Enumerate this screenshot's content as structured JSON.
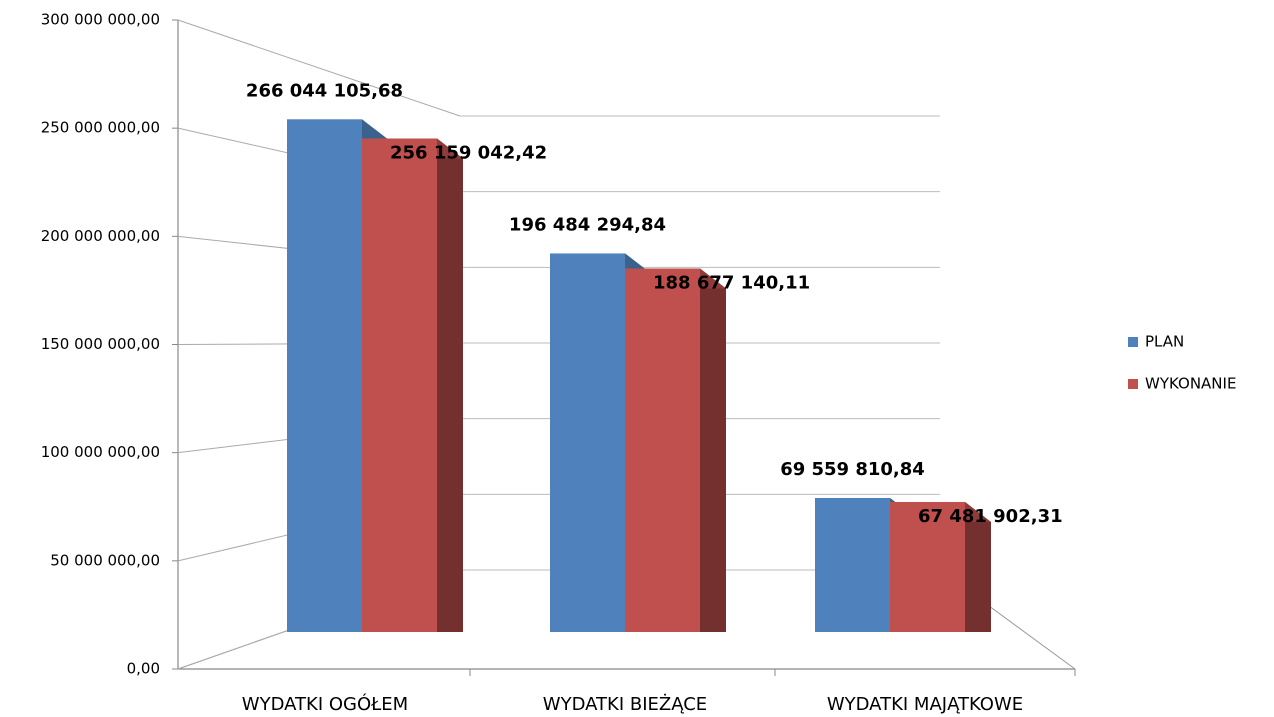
{
  "chart_data": {
    "type": "bar3d",
    "categories": [
      "WYDATKI OGÓŁEM",
      "WYDATKI BIEŻĄCE",
      "WYDATKI MAJĄTKOWE"
    ],
    "series": [
      {
        "name": "PLAN",
        "color": "#4f81bd",
        "values": [
          266044105.68,
          196484294.84,
          69559810.84
        ],
        "value_labels": [
          "266 044 105,68",
          "196 484 294,84",
          "69 559 810,84"
        ]
      },
      {
        "name": "WYKONANIE",
        "color": "#c0504d",
        "values": [
          256159042.42,
          188677140.11,
          67481902.31
        ],
        "value_labels": [
          "256 159 042,42",
          "188 677 140,11",
          "67 481 902,31"
        ]
      }
    ],
    "ylim": [
      0,
      300000000
    ],
    "yticks": [
      {
        "value": 0,
        "label": "0,00"
      },
      {
        "value": 50000000,
        "label": "50 000 000,00"
      },
      {
        "value": 100000000,
        "label": "100 000 000,00"
      },
      {
        "value": 150000000,
        "label": "150 000 000,00"
      },
      {
        "value": 200000000,
        "label": "200 000 000,00"
      },
      {
        "value": 250000000,
        "label": "250 000 000,00"
      },
      {
        "value": 300000000,
        "label": "300 000 000,00"
      }
    ],
    "grid": true,
    "legend": "right"
  }
}
